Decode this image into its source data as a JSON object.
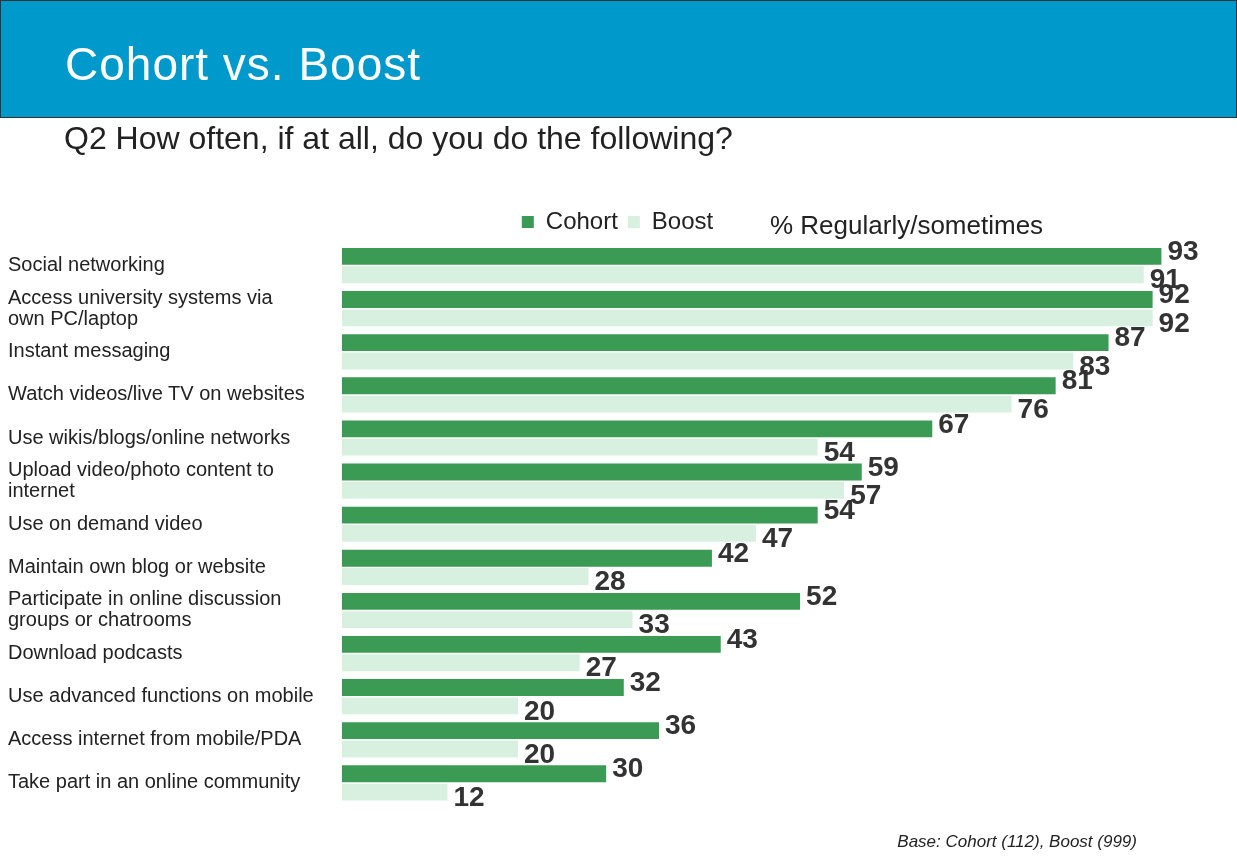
{
  "chart_data": {
    "type": "bar",
    "orientation": "horizontal",
    "title": "Cohort vs. Boost",
    "subtitle": "Q2  How often, if at all, do you do the following?",
    "categories": [
      "Social networking",
      "Access university systems via own PC/laptop",
      "Instant messaging",
      "Watch videos/live TV on websites",
      "Use wikis/blogs/online networks",
      "Upload video/photo content to internet",
      "Use on demand video",
      "Maintain own blog or website",
      "Participate in online discussion groups or chatrooms",
      "Download podcasts",
      "Use advanced functions on mobile",
      "Access internet from mobile/PDA",
      "Take part in an online community"
    ],
    "series": [
      {
        "name": "Cohort",
        "color": "#3b9a54",
        "values": [
          93,
          92,
          87,
          81,
          67,
          59,
          54,
          42,
          52,
          43,
          32,
          36,
          30
        ]
      },
      {
        "name": "Boost",
        "color": "#d8f0df",
        "values": [
          91,
          92,
          83,
          76,
          54,
          57,
          47,
          28,
          33,
          27,
          20,
          20,
          12
        ]
      }
    ],
    "data_labels": true,
    "legend": "top",
    "annotations": [
      "% Regularly/sometimes",
      "Base:  Cohort (112), Boost (999)"
    ]
  }
}
